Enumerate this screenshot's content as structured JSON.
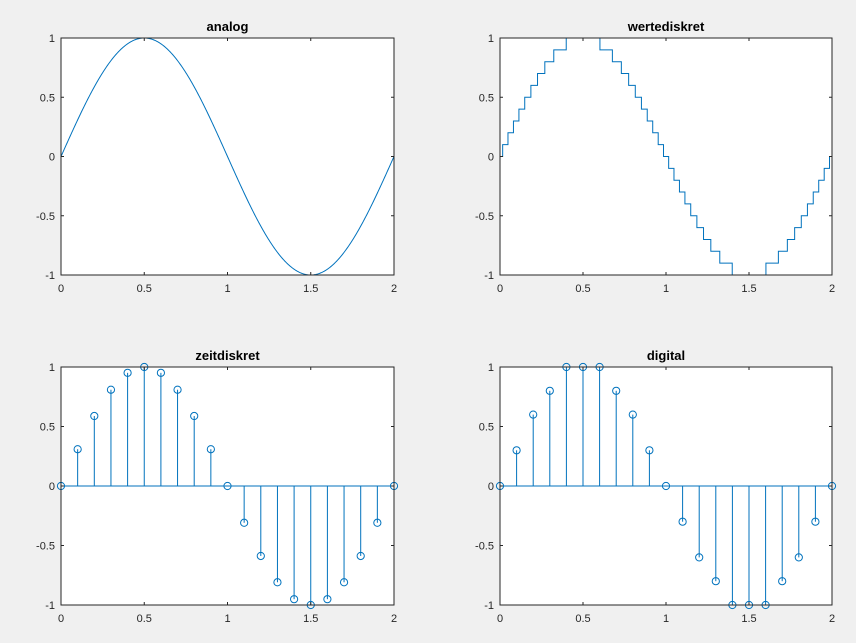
{
  "chart_data": [
    {
      "type": "line",
      "title": "analog",
      "function": "sin(pi*x)",
      "xlim": [
        0,
        2
      ],
      "ylim": [
        -1,
        1
      ],
      "x_ticks": [
        0,
        0.5,
        1,
        1.5,
        2
      ],
      "y_ticks": [
        -1,
        -0.5,
        0,
        0.5,
        1
      ],
      "x_tick_labels": [
        "0",
        "0.5",
        "1",
        "1.5",
        "2"
      ],
      "y_tick_labels": [
        "-1",
        "-0.5",
        "0",
        "0.5",
        "1"
      ],
      "grid": false,
      "color": "#0072bd"
    },
    {
      "type": "line",
      "style": "stairs",
      "title": "wertediskret",
      "function": "round(10*sin(pi*x))/10",
      "xlim": [
        0,
        2
      ],
      "ylim": [
        -1,
        1
      ],
      "x_ticks": [
        0,
        0.5,
        1,
        1.5,
        2
      ],
      "y_ticks": [
        -1,
        -0.5,
        0,
        0.5,
        1
      ],
      "x_tick_labels": [
        "0",
        "0.5",
        "1",
        "1.5",
        "2"
      ],
      "y_tick_labels": [
        "-1",
        "-0.5",
        "0",
        "0.5",
        "1"
      ],
      "grid": false,
      "color": "#0072bd"
    },
    {
      "type": "scatter",
      "style": "stem",
      "title": "zeitdiskret",
      "x": [
        0,
        0.1,
        0.2,
        0.3,
        0.4,
        0.5,
        0.6,
        0.7,
        0.8,
        0.9,
        1.0,
        1.1,
        1.2,
        1.3,
        1.4,
        1.5,
        1.6,
        1.7,
        1.8,
        1.9,
        2.0
      ],
      "y": [
        0,
        0.309,
        0.588,
        0.809,
        0.951,
        1.0,
        0.951,
        0.809,
        0.588,
        0.309,
        0,
        -0.309,
        -0.588,
        -0.809,
        -0.951,
        -1.0,
        -0.951,
        -0.809,
        -0.588,
        -0.309,
        0
      ],
      "xlim": [
        0,
        2
      ],
      "ylim": [
        -1,
        1
      ],
      "x_ticks": [
        0,
        0.5,
        1,
        1.5,
        2
      ],
      "y_ticks": [
        -1,
        -0.5,
        0,
        0.5,
        1
      ],
      "x_tick_labels": [
        "0",
        "0.5",
        "1",
        "1.5",
        "2"
      ],
      "y_tick_labels": [
        "-1",
        "-0.5",
        "0",
        "0.5",
        "1"
      ],
      "grid": false,
      "color": "#0072bd"
    },
    {
      "type": "scatter",
      "style": "stem",
      "title": "digital",
      "x": [
        0,
        0.1,
        0.2,
        0.3,
        0.4,
        0.5,
        0.6,
        0.7,
        0.8,
        0.9,
        1.0,
        1.1,
        1.2,
        1.3,
        1.4,
        1.5,
        1.6,
        1.7,
        1.8,
        1.9,
        2.0
      ],
      "y": [
        0,
        0.3,
        0.6,
        0.8,
        1.0,
        1.0,
        1.0,
        0.8,
        0.6,
        0.3,
        0,
        -0.3,
        -0.6,
        -0.8,
        -1.0,
        -1.0,
        -1.0,
        -0.8,
        -0.6,
        -0.3,
        0
      ],
      "xlim": [
        0,
        2
      ],
      "ylim": [
        -1,
        1
      ],
      "x_ticks": [
        0,
        0.5,
        1,
        1.5,
        2
      ],
      "y_ticks": [
        -1,
        -0.5,
        0,
        0.5,
        1
      ],
      "x_tick_labels": [
        "0",
        "0.5",
        "1",
        "1.5",
        "2"
      ],
      "y_tick_labels": [
        "-1",
        "-0.5",
        "0",
        "0.5",
        "1"
      ],
      "grid": false,
      "color": "#0072bd"
    }
  ]
}
